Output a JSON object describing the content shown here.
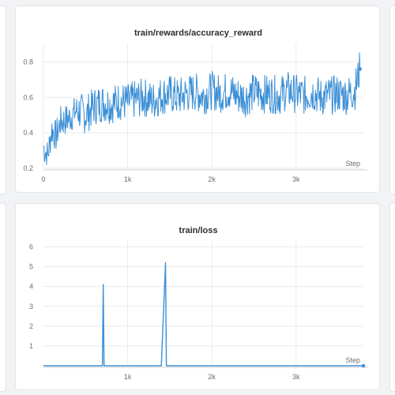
{
  "colors": {
    "line": "#3b8fd6",
    "background": "#ffffff",
    "page": "#f2f3f5"
  },
  "chart_data": [
    {
      "type": "line",
      "title": "train/rewards/accuracy_reward",
      "xlabel": "Step",
      "ylabel": "",
      "xlim": [
        0,
        3800
      ],
      "ylim": [
        0.2,
        0.9
      ],
      "y_ticks": [
        0.2,
        0.4,
        0.6,
        0.8
      ],
      "y_tick_labels": [
        "0.2",
        "0.4",
        "0.6",
        "0.8"
      ],
      "x_ticks": [
        0,
        1000,
        2000,
        3000
      ],
      "x_tick_labels": [
        "0",
        "1k",
        "2k",
        "3k"
      ],
      "grid": true,
      "series": [
        {
          "x": [
            0,
            50,
            100,
            150,
            200,
            300,
            400,
            500,
            600,
            700,
            800,
            900,
            1000,
            1100,
            1200,
            1300,
            1400,
            1500,
            1600,
            1700,
            1800,
            1900,
            2000,
            2100,
            2200,
            2300,
            2400,
            2500,
            2600,
            2700,
            2800,
            2900,
            3000,
            3100,
            3200,
            3300,
            3400,
            3500,
            3600,
            3700,
            3760
          ],
          "y": [
            0.32,
            0.27,
            0.42,
            0.38,
            0.46,
            0.48,
            0.53,
            0.5,
            0.55,
            0.57,
            0.56,
            0.58,
            0.57,
            0.59,
            0.6,
            0.58,
            0.61,
            0.62,
            0.6,
            0.62,
            0.63,
            0.61,
            0.64,
            0.62,
            0.64,
            0.61,
            0.6,
            0.63,
            0.62,
            0.62,
            0.61,
            0.64,
            0.62,
            0.61,
            0.63,
            0.6,
            0.61,
            0.62,
            0.61,
            0.64,
            0.76
          ]
        }
      ]
    },
    {
      "type": "line",
      "title": "train/loss",
      "xlabel": "Step",
      "ylabel": "",
      "xlim": [
        0,
        3800
      ],
      "ylim": [
        0,
        6.3
      ],
      "y_ticks": [
        1,
        2,
        3,
        4,
        5,
        6
      ],
      "y_tick_labels": [
        "1",
        "2",
        "3",
        "4",
        "5",
        "6"
      ],
      "x_ticks": [
        1000,
        2000,
        3000
      ],
      "x_tick_labels": [
        "1k",
        "2k",
        "3k"
      ],
      "grid": true,
      "series": [
        {
          "x": [
            0,
            500,
            700,
            710,
            720,
            1000,
            1400,
            1450,
            1460,
            1470,
            2000,
            3000,
            3800
          ],
          "y": [
            0,
            0,
            0,
            4.1,
            0,
            0,
            0,
            5.2,
            0,
            0,
            0,
            0,
            0
          ]
        }
      ]
    }
  ]
}
